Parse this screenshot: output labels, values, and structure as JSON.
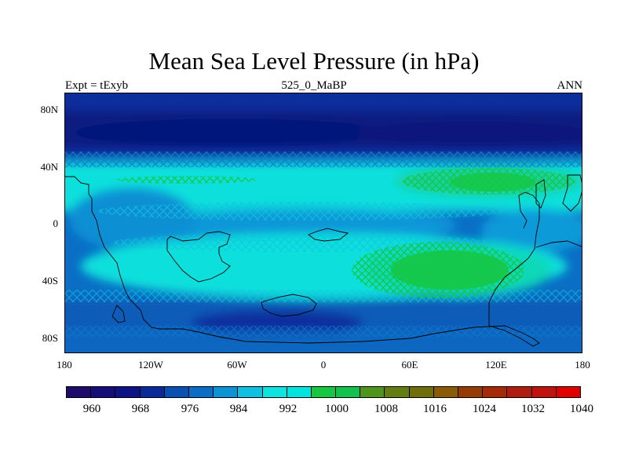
{
  "map": {
    "title": "Mean Sea Level Pressure (in hPa)",
    "left_label": "Expt = tExyb",
    "center_label": "525_0_MaBP",
    "right_label": "ANN",
    "lat_labels": [
      "80N",
      "40N",
      "0",
      "40S",
      "80S"
    ],
    "lon_labels": [
      "180",
      "120W",
      "60W",
      "0",
      "60E",
      "120E",
      "180"
    ],
    "legend": {
      "labels": [
        "960",
        "968",
        "976",
        "984",
        "992",
        "1000",
        "1008",
        "1016",
        "1024",
        "1032",
        "1040"
      ],
      "colors": [
        "#1e0b6b",
        "#160e78",
        "#0d1385",
        "#0b2a9a",
        "#0a4fb2",
        "#0b6ec6",
        "#0c93d6",
        "#10c0e0",
        "#0ee3e0",
        "#00e4dd",
        "#17c742",
        "#13c24c",
        "#4f951d",
        "#657c12",
        "#6e6e0c",
        "#8a5a06",
        "#953b06",
        "#a52a0a",
        "#b01c10",
        "#c0130f",
        "#e00000"
      ]
    },
    "colors": {
      "deep_blue": "#0a1f82",
      "dark_blue": "#0b2f9e",
      "medium_blue": "#0a6ec5",
      "light_blue": "#0c96d8",
      "cyan": "#0fe1dc",
      "green": "#15c84a",
      "coastline": "#000000"
    }
  }
}
